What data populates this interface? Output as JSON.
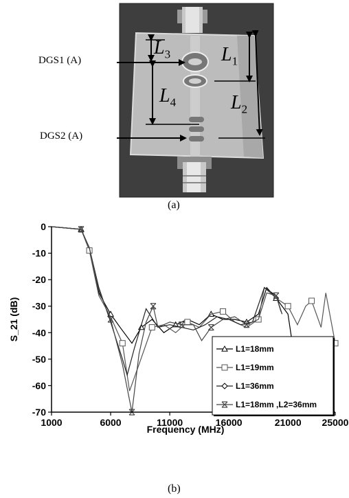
{
  "figure_a": {
    "caption": "(a)",
    "callouts": {
      "dgs1": "DGS1 (A)",
      "dgs2": "DGS2 (A)"
    },
    "dimensions": {
      "l1": "1",
      "l2": "2",
      "l3": "3",
      "l4": "4"
    }
  },
  "figure_b": {
    "caption": "(b)"
  },
  "chart_data": {
    "type": "line",
    "xlabel": "Frequency (MHz)",
    "ylabel": "S_21 (dB)",
    "xlim": [
      1000,
      25000
    ],
    "ylim": [
      -70,
      0
    ],
    "xticks": [
      "1000",
      "6000",
      "11000",
      "16000",
      "21000",
      "25000"
    ],
    "yticks": [
      "0",
      "-10",
      "-20",
      "-30",
      "-40",
      "-50",
      "-60",
      "-70"
    ],
    "grid": false,
    "legend_position": "bottom-right",
    "series": [
      {
        "name": "L1=18mm",
        "marker": "triangle",
        "x": [
          1000,
          3500,
          4200,
          5000,
          6000,
          6800,
          7800,
          8600,
          9500,
          10500,
          11500,
          12500,
          13500,
          14500,
          15500,
          16500,
          17500,
          18500,
          19200,
          20000,
          21000,
          21300
        ],
        "y": [
          0,
          -1,
          -8,
          -25,
          -33,
          -38,
          -44,
          -38,
          -35,
          -40,
          -37,
          -35,
          -37,
          -33,
          -35,
          -35,
          -36,
          -33,
          -23,
          -27,
          -33,
          -42
        ]
      },
      {
        "name": "L1=19mm",
        "marker": "square",
        "x": [
          1000,
          3500,
          4200,
          5000,
          6000,
          7000,
          7600,
          8400,
          9500,
          10500,
          11500,
          12500,
          13500,
          14500,
          15500,
          16500,
          17500,
          18500,
          19000,
          20000,
          21000,
          21800,
          22500,
          23000,
          23800,
          24200,
          25000
        ],
        "y": [
          0,
          -1,
          -9,
          -26,
          -34,
          -44,
          -62,
          -52,
          -38,
          -37,
          -40,
          -36,
          -38,
          -33,
          -32,
          -36,
          -38,
          -35,
          -23,
          -27,
          -30,
          -37,
          -30,
          -28,
          -38,
          -25,
          -44
        ]
      },
      {
        "name": "L1=36mm",
        "marker": "diamond",
        "x": [
          1000,
          3500,
          4200,
          5000,
          6000,
          7000,
          7400,
          8000,
          9000,
          10000,
          11000,
          12000,
          13000,
          14000,
          15000,
          16000,
          17000,
          18000,
          19000,
          20000,
          20500
        ],
        "y": [
          0,
          -1,
          -8,
          -23,
          -36,
          -50,
          -56,
          -46,
          -31,
          -38,
          -37,
          -38,
          -39,
          -37,
          -34,
          -35,
          -37,
          -36,
          -23,
          -26,
          -33
        ]
      },
      {
        "name": "L1=18mm ,L2=36mm",
        "marker": "star",
        "x": [
          1000,
          3500,
          4200,
          5000,
          6000,
          7000,
          7400,
          7800,
          8400,
          9000,
          9600,
          10000,
          11000,
          12000,
          13000,
          13700,
          14500,
          15500,
          16500,
          17500,
          18500,
          19200,
          20000,
          20400
        ],
        "y": [
          0,
          -1,
          -8,
          -24,
          -35,
          -52,
          -61,
          -70,
          -48,
          -36,
          -30,
          -38,
          -36,
          -37,
          -37,
          -43,
          -38,
          -35,
          -34,
          -37,
          -35,
          -25,
          -26,
          -32
        ]
      }
    ]
  }
}
